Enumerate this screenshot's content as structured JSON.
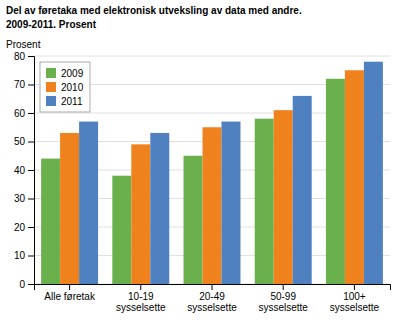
{
  "chart_data": {
    "type": "bar",
    "title": "Del av føretaka med elektronisk utveksling av data med andre.",
    "subtitle": "2009-2011. Prosent",
    "ylabel": "Prosent",
    "categories": [
      "Alle føretak",
      "10-19\nsysselsette",
      "20-49\nsysselsette",
      "50-99\nsysselsette",
      "100+\nsysselsette"
    ],
    "series": [
      {
        "name": "2009",
        "color": "#6ab04c",
        "values": [
          44,
          38,
          45,
          58,
          72
        ]
      },
      {
        "name": "2010",
        "color": "#f0821e",
        "values": [
          53,
          49,
          55,
          61,
          75
        ]
      },
      {
        "name": "2011",
        "color": "#4f80c0",
        "values": [
          57,
          53,
          57,
          66,
          78
        ]
      }
    ],
    "ylim": [
      0,
      80
    ],
    "yticks": [
      0,
      10,
      20,
      30,
      40,
      50,
      60,
      70,
      80
    ],
    "grid": true,
    "legend": "top-left"
  }
}
